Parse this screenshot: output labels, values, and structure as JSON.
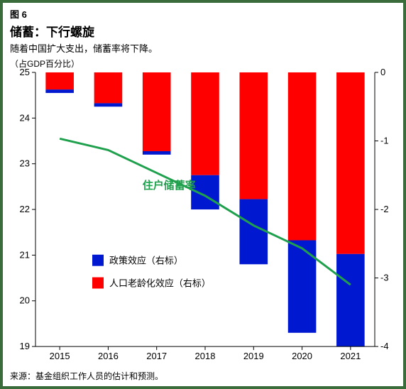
{
  "header": {
    "fig_num": "图 6",
    "title": "储蓄：下行螺旋",
    "subtitle": "随着中国扩大支出，储蓄率将下降。",
    "left_axis_unit": "（占GDP百分比）"
  },
  "footer": {
    "source": "来源：基金组织工作人员的估计和预测。"
  },
  "chart": {
    "type": "combo bar+line dual-axis",
    "categories": [
      "2015",
      "2016",
      "2017",
      "2018",
      "2019",
      "2020",
      "2021"
    ],
    "left_axis": {
      "min": 19,
      "max": 25,
      "ticks": [
        19,
        20,
        21,
        22,
        23,
        24,
        25
      ]
    },
    "right_axis": {
      "min": -4,
      "max": 0,
      "ticks": [
        -4,
        -3,
        -2,
        -1,
        0
      ]
    },
    "bars_right_axis": {
      "red_top": [
        -0.25,
        -0.45,
        -1.15,
        -1.5,
        -1.85,
        -2.45,
        -2.65
      ],
      "blue_bottom": [
        -0.3,
        -0.5,
        -1.2,
        -2.0,
        -2.8,
        -3.8,
        -4.0
      ],
      "bar_width": 0.58
    },
    "line_left_axis": {
      "values": [
        23.55,
        23.3,
        22.8,
        22.3,
        21.65,
        21.15,
        20.35
      ],
      "label": "住户储蓄率"
    },
    "legend": {
      "blue": "政策效应（右标）",
      "red": "人口老龄化效应（右标）"
    },
    "colors": {
      "blue": "#0018d0",
      "red": "#ff0000",
      "green": "#1fa04d",
      "axis": "#000000",
      "bg": "#ffffff",
      "frame": "#3a6b3a"
    },
    "fonts": {
      "axis_pt": 13,
      "legend_pt": 13,
      "title_pt": 17,
      "subtitle_pt": 13,
      "inline_label_pt": 15
    }
  }
}
